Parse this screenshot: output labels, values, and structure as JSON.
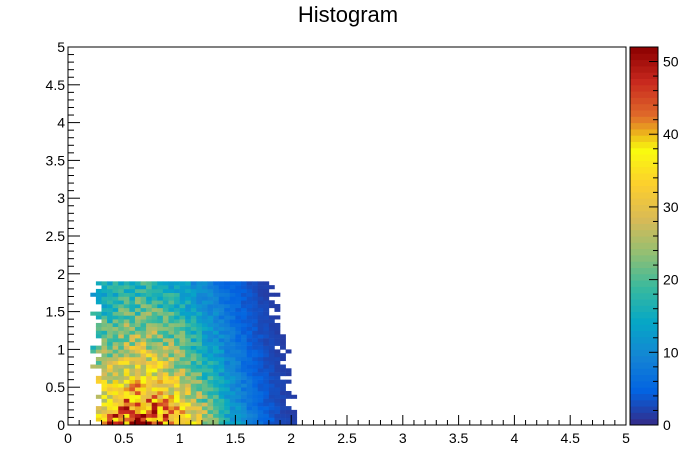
{
  "chart_data": {
    "type": "heatmap",
    "title": "Histogram",
    "xlabel": "",
    "ylabel": "",
    "xlim": [
      0,
      5
    ],
    "ylim": [
      0,
      5
    ],
    "x_ticks": [
      "0",
      "0.5",
      "1",
      "1.5",
      "2",
      "2.5",
      "3",
      "3.5",
      "4",
      "4.5",
      "5"
    ],
    "y_ticks": [
      "0",
      "0.5",
      "1",
      "1.5",
      "2",
      "2.5",
      "3",
      "3.5",
      "4",
      "4.5",
      "5"
    ],
    "colorbar": {
      "min": 0,
      "max": 52,
      "ticks": [
        "0",
        "10",
        "20",
        "30",
        "40",
        "50"
      ],
      "palette": [
        "#352a87",
        "#0363e1",
        "#1485d4",
        "#06a7c6",
        "#38b99e",
        "#92bf73",
        "#d9ba56",
        "#fcce2e",
        "#f9fb0e",
        "#e06b2a",
        "#c8281e",
        "#8b0000"
      ]
    },
    "bins": {
      "nx": 100,
      "ny": 100
    },
    "grid": false,
    "description_of_distribution": "counts concentrated near x=0.3-1.5, y=0-1.9; peak ~50 near x~0.6, y~0.3; tail to x~3"
  }
}
